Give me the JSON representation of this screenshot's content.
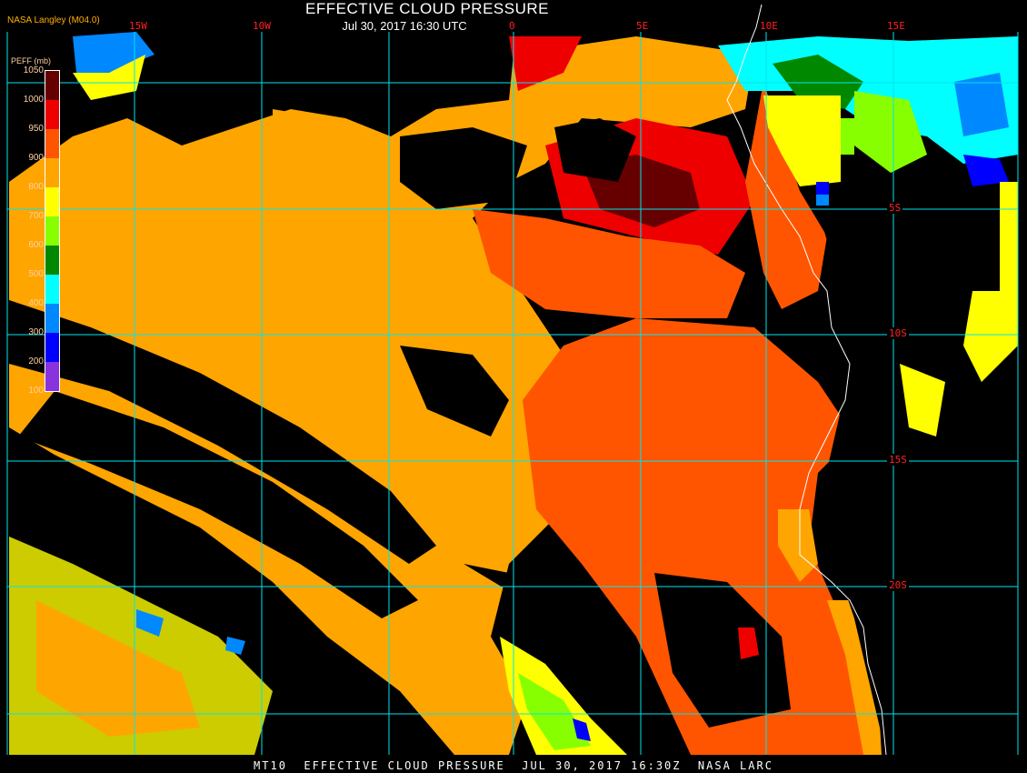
{
  "header": {
    "title": "EFFECTIVE CLOUD PRESSURE",
    "subtitle": "Jul 30, 2017 16:30 UTC",
    "credit": "NASA Langley (M04.0)"
  },
  "footer": "MT10  EFFECTIVE CLOUD PRESSURE  JUL 30, 2017 16:30Z  NASA LARC",
  "grid": {
    "longitude_labels": [
      "15W",
      "10W",
      "0",
      "5E",
      "10E",
      "15E"
    ],
    "latitude_labels": [
      "5S",
      "10S",
      "15S",
      "20S"
    ],
    "line_color": "#00e5ee",
    "label_color": "#ff2020"
  },
  "legend": {
    "title": "PEFF (mb)",
    "ticks": [
      "1050",
      "1000",
      "950",
      "900",
      "800",
      "700",
      "600",
      "500",
      "400",
      "300",
      "200",
      "100"
    ],
    "colors": [
      "#660000",
      "#ee0000",
      "#ff5500",
      "#ffa500",
      "#ffff00",
      "#88ff00",
      "#008800",
      "#00ffff",
      "#0088ff",
      "#0000ff",
      "#8833dd"
    ]
  }
}
